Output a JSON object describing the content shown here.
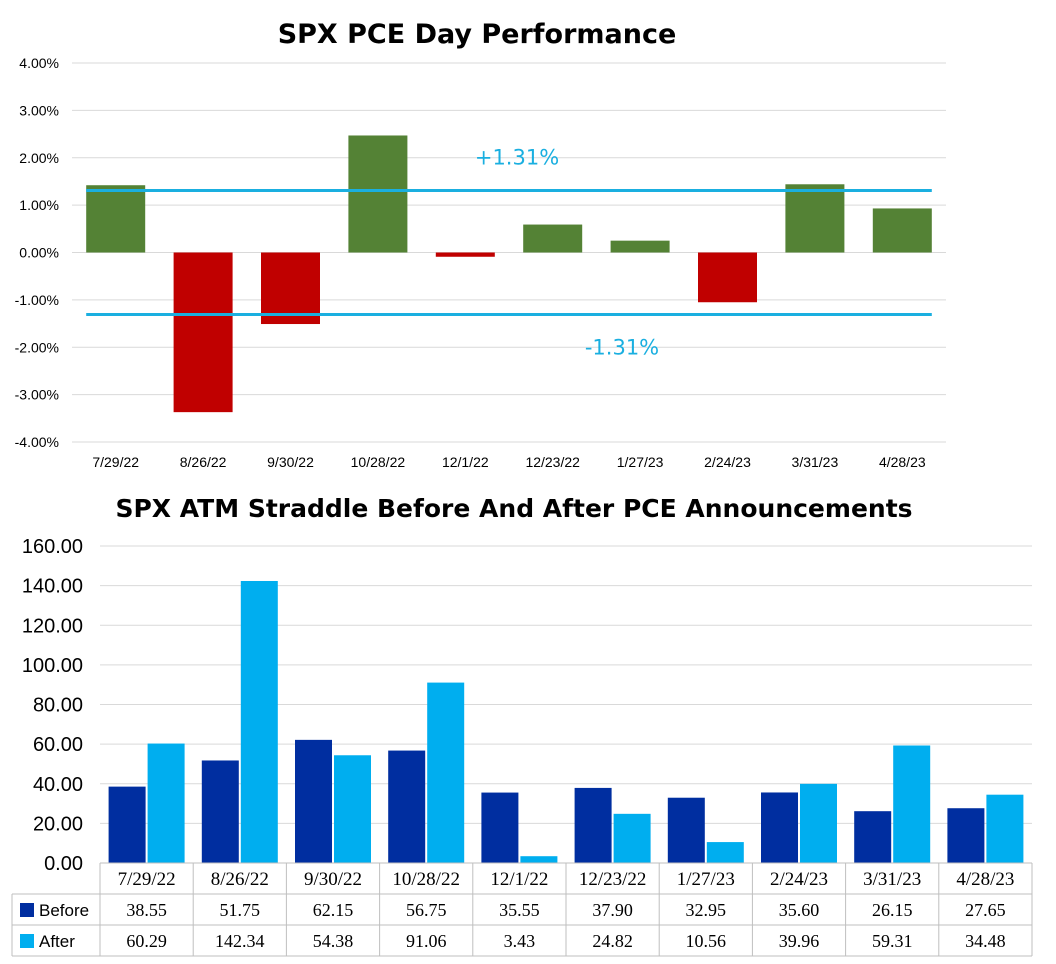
{
  "chart_data": [
    {
      "type": "bar",
      "title": "SPX PCE Day Performance",
      "categories": [
        "7/29/22",
        "8/26/22",
        "9/30/22",
        "10/28/22",
        "12/1/22",
        "12/23/22",
        "1/27/23",
        "2/24/23",
        "3/31/23",
        "4/28/23"
      ],
      "values": [
        1.42,
        -3.37,
        -1.51,
        2.47,
        -0.09,
        0.59,
        0.25,
        -1.05,
        1.44,
        0.93
      ],
      "ylim": [
        -4,
        4
      ],
      "yticks": [
        "-4.00%",
        "-3.00%",
        "-2.00%",
        "-1.00%",
        "0.00%",
        "1.00%",
        "2.00%",
        "3.00%",
        "4.00%"
      ],
      "positive_color": "#548235",
      "negative_color": "#C00000",
      "reference_lines": [
        {
          "value": 1.31,
          "label": "+1.31%"
        },
        {
          "value": -1.31,
          "label": "-1.31%"
        }
      ],
      "reference_color": "#1AAFE0",
      "xlabel": "",
      "ylabel": "",
      "grid": true
    },
    {
      "type": "bar",
      "title": "SPX ATM Straddle Before And After PCE Announcements",
      "categories": [
        "7/29/22",
        "8/26/22",
        "9/30/22",
        "10/28/22",
        "12/1/22",
        "12/23/22",
        "1/27/23",
        "2/24/23",
        "3/31/23",
        "4/28/23"
      ],
      "series": [
        {
          "name": "Before",
          "color": "#002EA0",
          "values": [
            38.55,
            51.75,
            62.15,
            56.75,
            35.55,
            37.9,
            32.95,
            35.6,
            26.15,
            27.65
          ],
          "labels": [
            "38.55",
            "51.75",
            "62.15",
            "56.75",
            "35.55",
            "37.90",
            "32.95",
            "35.60",
            "26.15",
            "27.65"
          ]
        },
        {
          "name": "After",
          "color": "#00AEEF",
          "values": [
            60.29,
            142.34,
            54.38,
            91.06,
            3.43,
            24.82,
            10.56,
            39.96,
            59.31,
            34.48
          ],
          "labels": [
            "60.29",
            "142.34",
            "54.38",
            "91.06",
            "3.43",
            "24.82",
            "10.56",
            "39.96",
            "59.31",
            "34.48"
          ]
        }
      ],
      "ylim": [
        0,
        160
      ],
      "yticks": [
        "0.00",
        "20.00",
        "40.00",
        "60.00",
        "80.00",
        "100.00",
        "120.00",
        "140.00",
        "160.00"
      ],
      "xlabel": "",
      "ylabel": "",
      "grid": true,
      "data_table": true
    }
  ]
}
